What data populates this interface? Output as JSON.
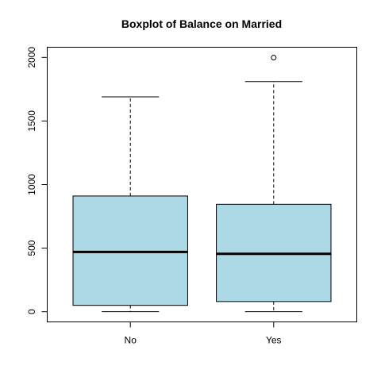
{
  "chart_data": {
    "type": "boxplot",
    "title": "Boxplot of Balance on Married",
    "xlabel": "",
    "ylabel": "",
    "categories": [
      "No",
      "Yes"
    ],
    "ylim": [
      -80,
      2080
    ],
    "yticks": [
      0,
      500,
      1000,
      1500,
      2000
    ],
    "ytick_labels": [
      "0",
      "500",
      "1000",
      "1500",
      "2000"
    ],
    "grid": false,
    "box_fill": "#ADD8E6",
    "boxes": [
      {
        "category": "No",
        "whisker_low": 0,
        "q1": 50,
        "median": 470,
        "q3": 910,
        "whisker_high": 1690,
        "outliers": []
      },
      {
        "category": "Yes",
        "whisker_low": 0,
        "q1": 80,
        "median": 455,
        "q3": 845,
        "whisker_high": 1810,
        "outliers": [
          1999
        ]
      }
    ]
  }
}
